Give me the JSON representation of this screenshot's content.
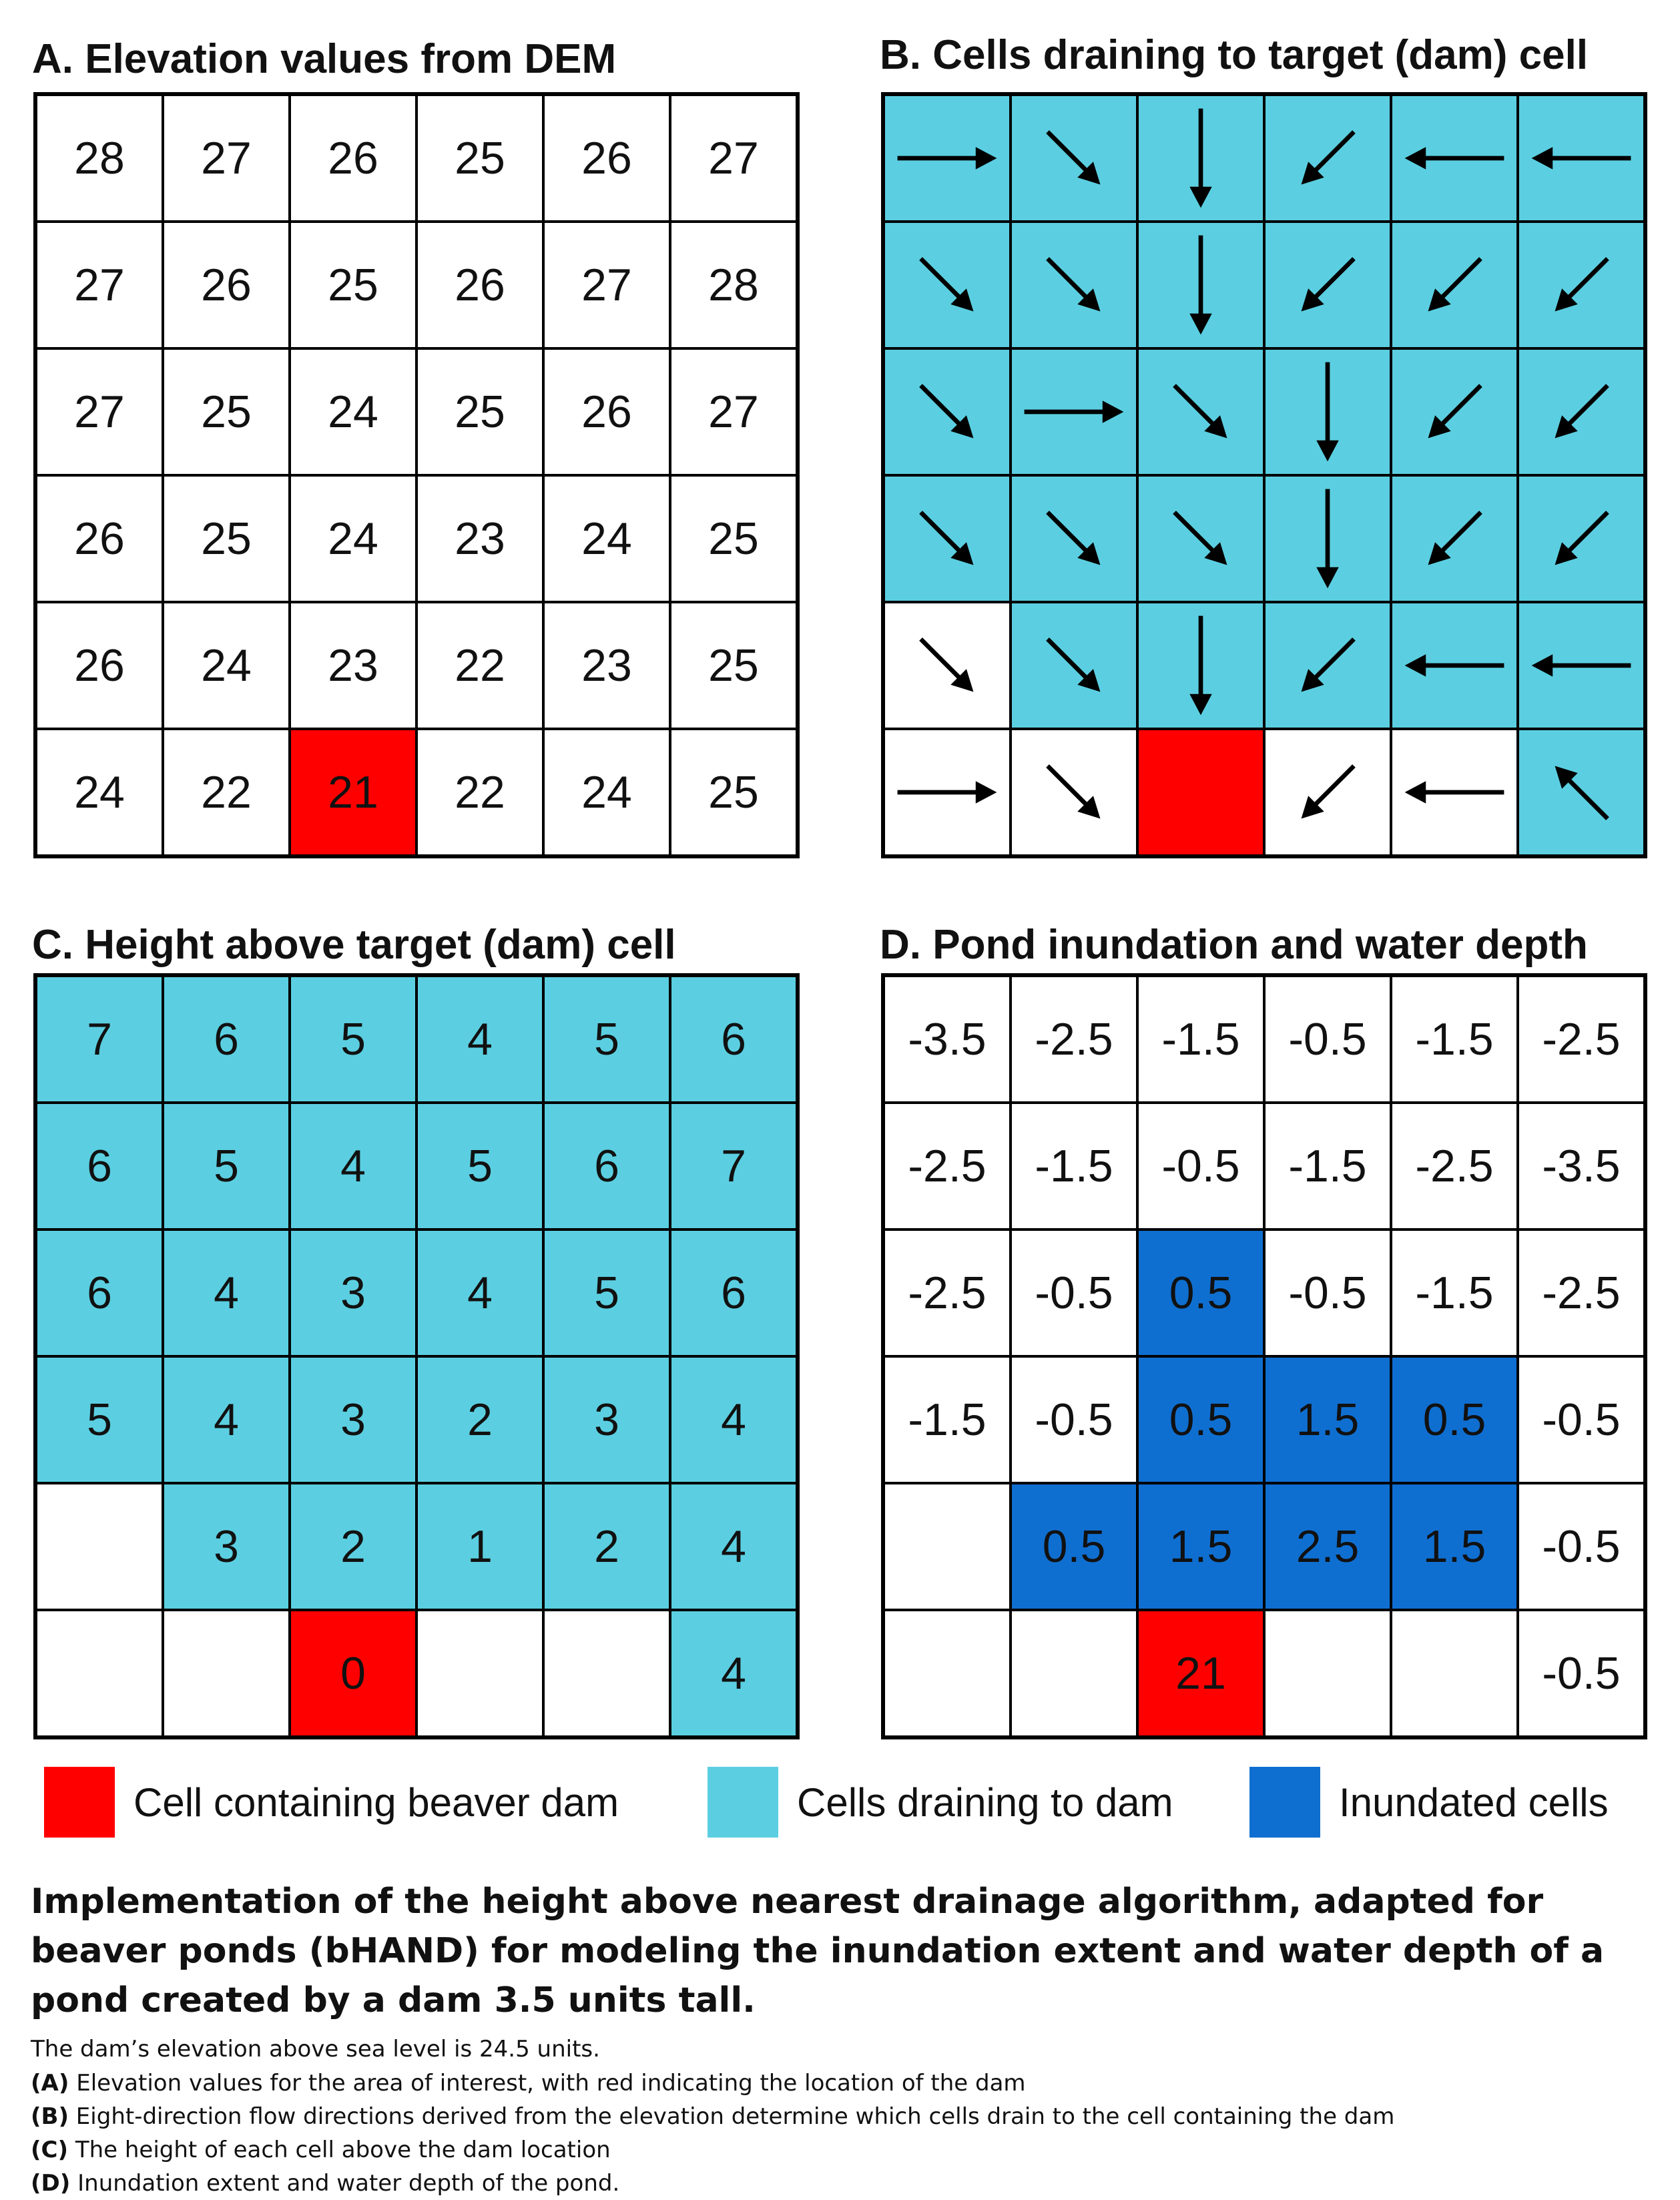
{
  "colors": {
    "dam": "#ff0000",
    "draining": "#5bcfe1",
    "inundated": "#0f6fd1",
    "none": "#ffffff"
  },
  "panels": {
    "a": {
      "title": "A. Elevation values from DEM",
      "values": [
        [
          "28",
          "27",
          "26",
          "25",
          "26",
          "27"
        ],
        [
          "27",
          "26",
          "25",
          "26",
          "27",
          "28"
        ],
        [
          "27",
          "25",
          "24",
          "25",
          "26",
          "27"
        ],
        [
          "26",
          "25",
          "24",
          "23",
          "24",
          "25"
        ],
        [
          "26",
          "24",
          "23",
          "22",
          "23",
          "25"
        ],
        [
          "24",
          "22",
          "21",
          "22",
          "24",
          "25"
        ]
      ],
      "fill": [
        [
          "none",
          "none",
          "none",
          "none",
          "none",
          "none"
        ],
        [
          "none",
          "none",
          "none",
          "none",
          "none",
          "none"
        ],
        [
          "none",
          "none",
          "none",
          "none",
          "none",
          "none"
        ],
        [
          "none",
          "none",
          "none",
          "none",
          "none",
          "none"
        ],
        [
          "none",
          "none",
          "none",
          "none",
          "none",
          "none"
        ],
        [
          "none",
          "none",
          "dam",
          "none",
          "none",
          "none"
        ]
      ]
    },
    "b": {
      "title": "B. Cells draining to target (dam) cell",
      "directions": [
        [
          "E",
          "SE",
          "S",
          "SW",
          "W",
          "W"
        ],
        [
          "SE",
          "SE",
          "S",
          "SW",
          "SW",
          "SW"
        ],
        [
          "SE",
          "E",
          "SE",
          "S",
          "SW",
          "SW"
        ],
        [
          "SE",
          "SE",
          "SE",
          "S",
          "SW",
          "SW"
        ],
        [
          "SE",
          "SE",
          "S",
          "SW",
          "W",
          "W"
        ],
        [
          "E",
          "SE",
          "",
          "SW",
          "W",
          "NW"
        ]
      ],
      "fill": [
        [
          "draining",
          "draining",
          "draining",
          "draining",
          "draining",
          "draining"
        ],
        [
          "draining",
          "draining",
          "draining",
          "draining",
          "draining",
          "draining"
        ],
        [
          "draining",
          "draining",
          "draining",
          "draining",
          "draining",
          "draining"
        ],
        [
          "draining",
          "draining",
          "draining",
          "draining",
          "draining",
          "draining"
        ],
        [
          "none",
          "draining",
          "draining",
          "draining",
          "draining",
          "draining"
        ],
        [
          "none",
          "none",
          "dam",
          "none",
          "none",
          "draining"
        ]
      ]
    },
    "c": {
      "title": "C. Height above target (dam) cell",
      "values": [
        [
          "7",
          "6",
          "5",
          "4",
          "5",
          "6"
        ],
        [
          "6",
          "5",
          "4",
          "5",
          "6",
          "7"
        ],
        [
          "6",
          "4",
          "3",
          "4",
          "5",
          "6"
        ],
        [
          "5",
          "4",
          "3",
          "2",
          "3",
          "4"
        ],
        [
          "",
          "3",
          "2",
          "1",
          "2",
          "4"
        ],
        [
          "",
          "",
          "0",
          "",
          "",
          "4"
        ]
      ],
      "fill": [
        [
          "draining",
          "draining",
          "draining",
          "draining",
          "draining",
          "draining"
        ],
        [
          "draining",
          "draining",
          "draining",
          "draining",
          "draining",
          "draining"
        ],
        [
          "draining",
          "draining",
          "draining",
          "draining",
          "draining",
          "draining"
        ],
        [
          "draining",
          "draining",
          "draining",
          "draining",
          "draining",
          "draining"
        ],
        [
          "none",
          "draining",
          "draining",
          "draining",
          "draining",
          "draining"
        ],
        [
          "none",
          "none",
          "dam",
          "none",
          "none",
          "draining"
        ]
      ]
    },
    "d": {
      "title": "D. Pond inundation and water depth",
      "values": [
        [
          "-3.5",
          "-2.5",
          "-1.5",
          "-0.5",
          "-1.5",
          "-2.5"
        ],
        [
          "-2.5",
          "-1.5",
          "-0.5",
          "-1.5",
          "-2.5",
          "-3.5"
        ],
        [
          "-2.5",
          "-0.5",
          "0.5",
          "-0.5",
          "-1.5",
          "-2.5"
        ],
        [
          "-1.5",
          "-0.5",
          "0.5",
          "1.5",
          "0.5",
          "-0.5"
        ],
        [
          "",
          "0.5",
          "1.5",
          "2.5",
          "1.5",
          "-0.5"
        ],
        [
          "",
          "",
          "21",
          "",
          "",
          "-0.5"
        ]
      ],
      "fill": [
        [
          "none",
          "none",
          "none",
          "none",
          "none",
          "none"
        ],
        [
          "none",
          "none",
          "none",
          "none",
          "none",
          "none"
        ],
        [
          "none",
          "none",
          "inundated",
          "none",
          "none",
          "none"
        ],
        [
          "none",
          "none",
          "inundated",
          "inundated",
          "inundated",
          "none"
        ],
        [
          "none",
          "inundated",
          "inundated",
          "inundated",
          "inundated",
          "none"
        ],
        [
          "none",
          "none",
          "dam",
          "none",
          "none",
          "none"
        ]
      ]
    }
  },
  "legend": [
    {
      "label": "Cell containing beaver dam",
      "color": "#ff0000"
    },
    {
      "label": "Cells draining to dam",
      "color": "#5bcfe1"
    },
    {
      "label": "Inundated cells",
      "color": "#0f6fd1"
    }
  ],
  "caption": {
    "title": "Implementation of the height above nearest drainage algorithm, adapted for beaver ponds (bHAND) for modeling the inundation extent and water depth of a pond created by a dam 3.5 units tall.",
    "lines": [
      {
        "key": "",
        "text": "The dam’s elevation above sea level is 24.5 units."
      },
      {
        "key": "(A)",
        "text": " Elevation values for the area of interest, with red indicating the location of the dam"
      },
      {
        "key": "(B)",
        "text": " Eight-direction flow directions derived from the elevation determine which cells drain to the cell containing the dam"
      },
      {
        "key": "(C)",
        "text": " The height of each cell above the dam location"
      },
      {
        "key": "(D)",
        "text": " Inundation extent and water depth of the pond."
      }
    ]
  }
}
